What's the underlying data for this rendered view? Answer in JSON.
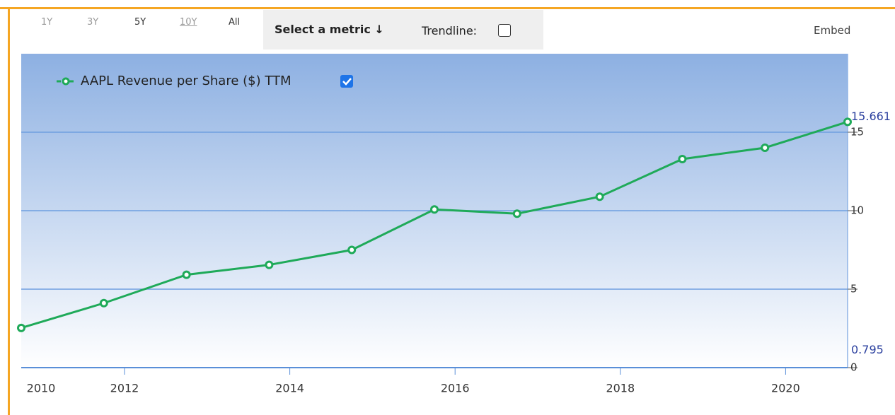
{
  "controls": {
    "ranges": [
      "1Y",
      "3Y",
      "5Y",
      "10Y",
      "All"
    ],
    "metric": "Select a metric ↓",
    "trendline": "Trendline:",
    "embed": "Embed"
  },
  "chart_data": {
    "type": "line",
    "x": [
      2010.75,
      2011.75,
      2012.75,
      2013.75,
      2014.75,
      2015.75,
      2016.75,
      2017.75,
      2018.75,
      2019.75,
      2020.75
    ],
    "series": [
      {
        "name": "AAPL Revenue per Share ($) TTM",
        "color": "#1faa59",
        "values": [
          2.53,
          4.11,
          5.92,
          6.55,
          7.5,
          10.08,
          9.81,
          10.89,
          13.29,
          14.01,
          15.661
        ]
      }
    ],
    "xlim": [
      2010.75,
      2020.75
    ],
    "xticks": [
      2012,
      2014,
      2016,
      2018,
      2020
    ],
    "x_start_label": "2010",
    "ylim": [
      0,
      20
    ],
    "yticks": [
      0,
      5,
      10,
      15
    ],
    "grid": true,
    "annotations": [
      {
        "text": "15.661",
        "value": 15.661
      },
      {
        "text": "0.795",
        "value": 0.795
      }
    ]
  }
}
